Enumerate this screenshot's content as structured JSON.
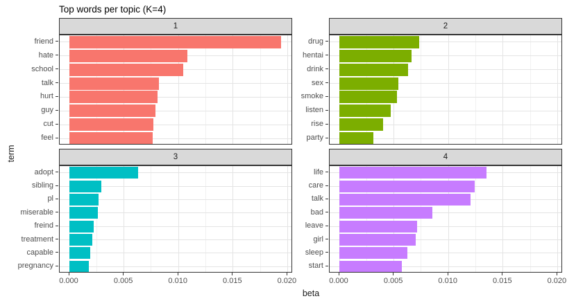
{
  "title": "Top words per topic (K=4)",
  "axes": {
    "x_label": "beta",
    "y_label": "term"
  },
  "colors": {
    "strip_fill": "#d9d9d9",
    "panel_border": "#333333",
    "panel_background": "#ffffff",
    "grid_major": "#e4e4e4",
    "grid_minor": "#f1f1f1",
    "axis_text": "#4d4d4d",
    "title_text": "#000000"
  },
  "chart_data": {
    "type": "bar",
    "orientation": "horizontal",
    "title": "Top words per topic (K=4)",
    "xlabel": "beta",
    "ylabel": "term",
    "xlim": [
      0,
      0.02
    ],
    "x_tick_values": [
      0,
      0.005,
      0.01,
      0.015,
      0.02
    ],
    "x_tick_labels": [
      "0.000",
      "0.005",
      "0.010",
      "0.015",
      "0.020"
    ],
    "x_minor_tick_values": [
      0.0025,
      0.0075,
      0.0125,
      0.0175
    ],
    "grid": true,
    "legend": "none",
    "facets": [
      {
        "label": "1",
        "color": "#F8766D",
        "categories": [
          "friend",
          "hate",
          "school",
          "talk",
          "hurt",
          "guy",
          "cut",
          "feel"
        ],
        "values": [
          0.0194,
          0.0108,
          0.0104,
          0.0082,
          0.0081,
          0.0079,
          0.0077,
          0.0076
        ]
      },
      {
        "label": "2",
        "color": "#7CAE00",
        "categories": [
          "drug",
          "hentai",
          "drink",
          "sex",
          "smoke",
          "listen",
          "rise",
          "party"
        ],
        "values": [
          0.0073,
          0.0066,
          0.0063,
          0.0054,
          0.0053,
          0.0047,
          0.004,
          0.0031
        ]
      },
      {
        "label": "3",
        "color": "#00BFC4",
        "categories": [
          "adopt",
          "sibling",
          "pl",
          "miserable",
          "freind",
          "treatment",
          "capable",
          "pregnancy"
        ],
        "values": [
          0.0063,
          0.0029,
          0.0027,
          0.0026,
          0.0022,
          0.0021,
          0.0019,
          0.0018
        ]
      },
      {
        "label": "4",
        "color": "#C77CFF",
        "categories": [
          "life",
          "care",
          "talk",
          "bad",
          "leave",
          "girl",
          "sleep",
          "start"
        ],
        "values": [
          0.0135,
          0.0124,
          0.012,
          0.0085,
          0.0071,
          0.007,
          0.0062,
          0.0057
        ]
      }
    ]
  }
}
